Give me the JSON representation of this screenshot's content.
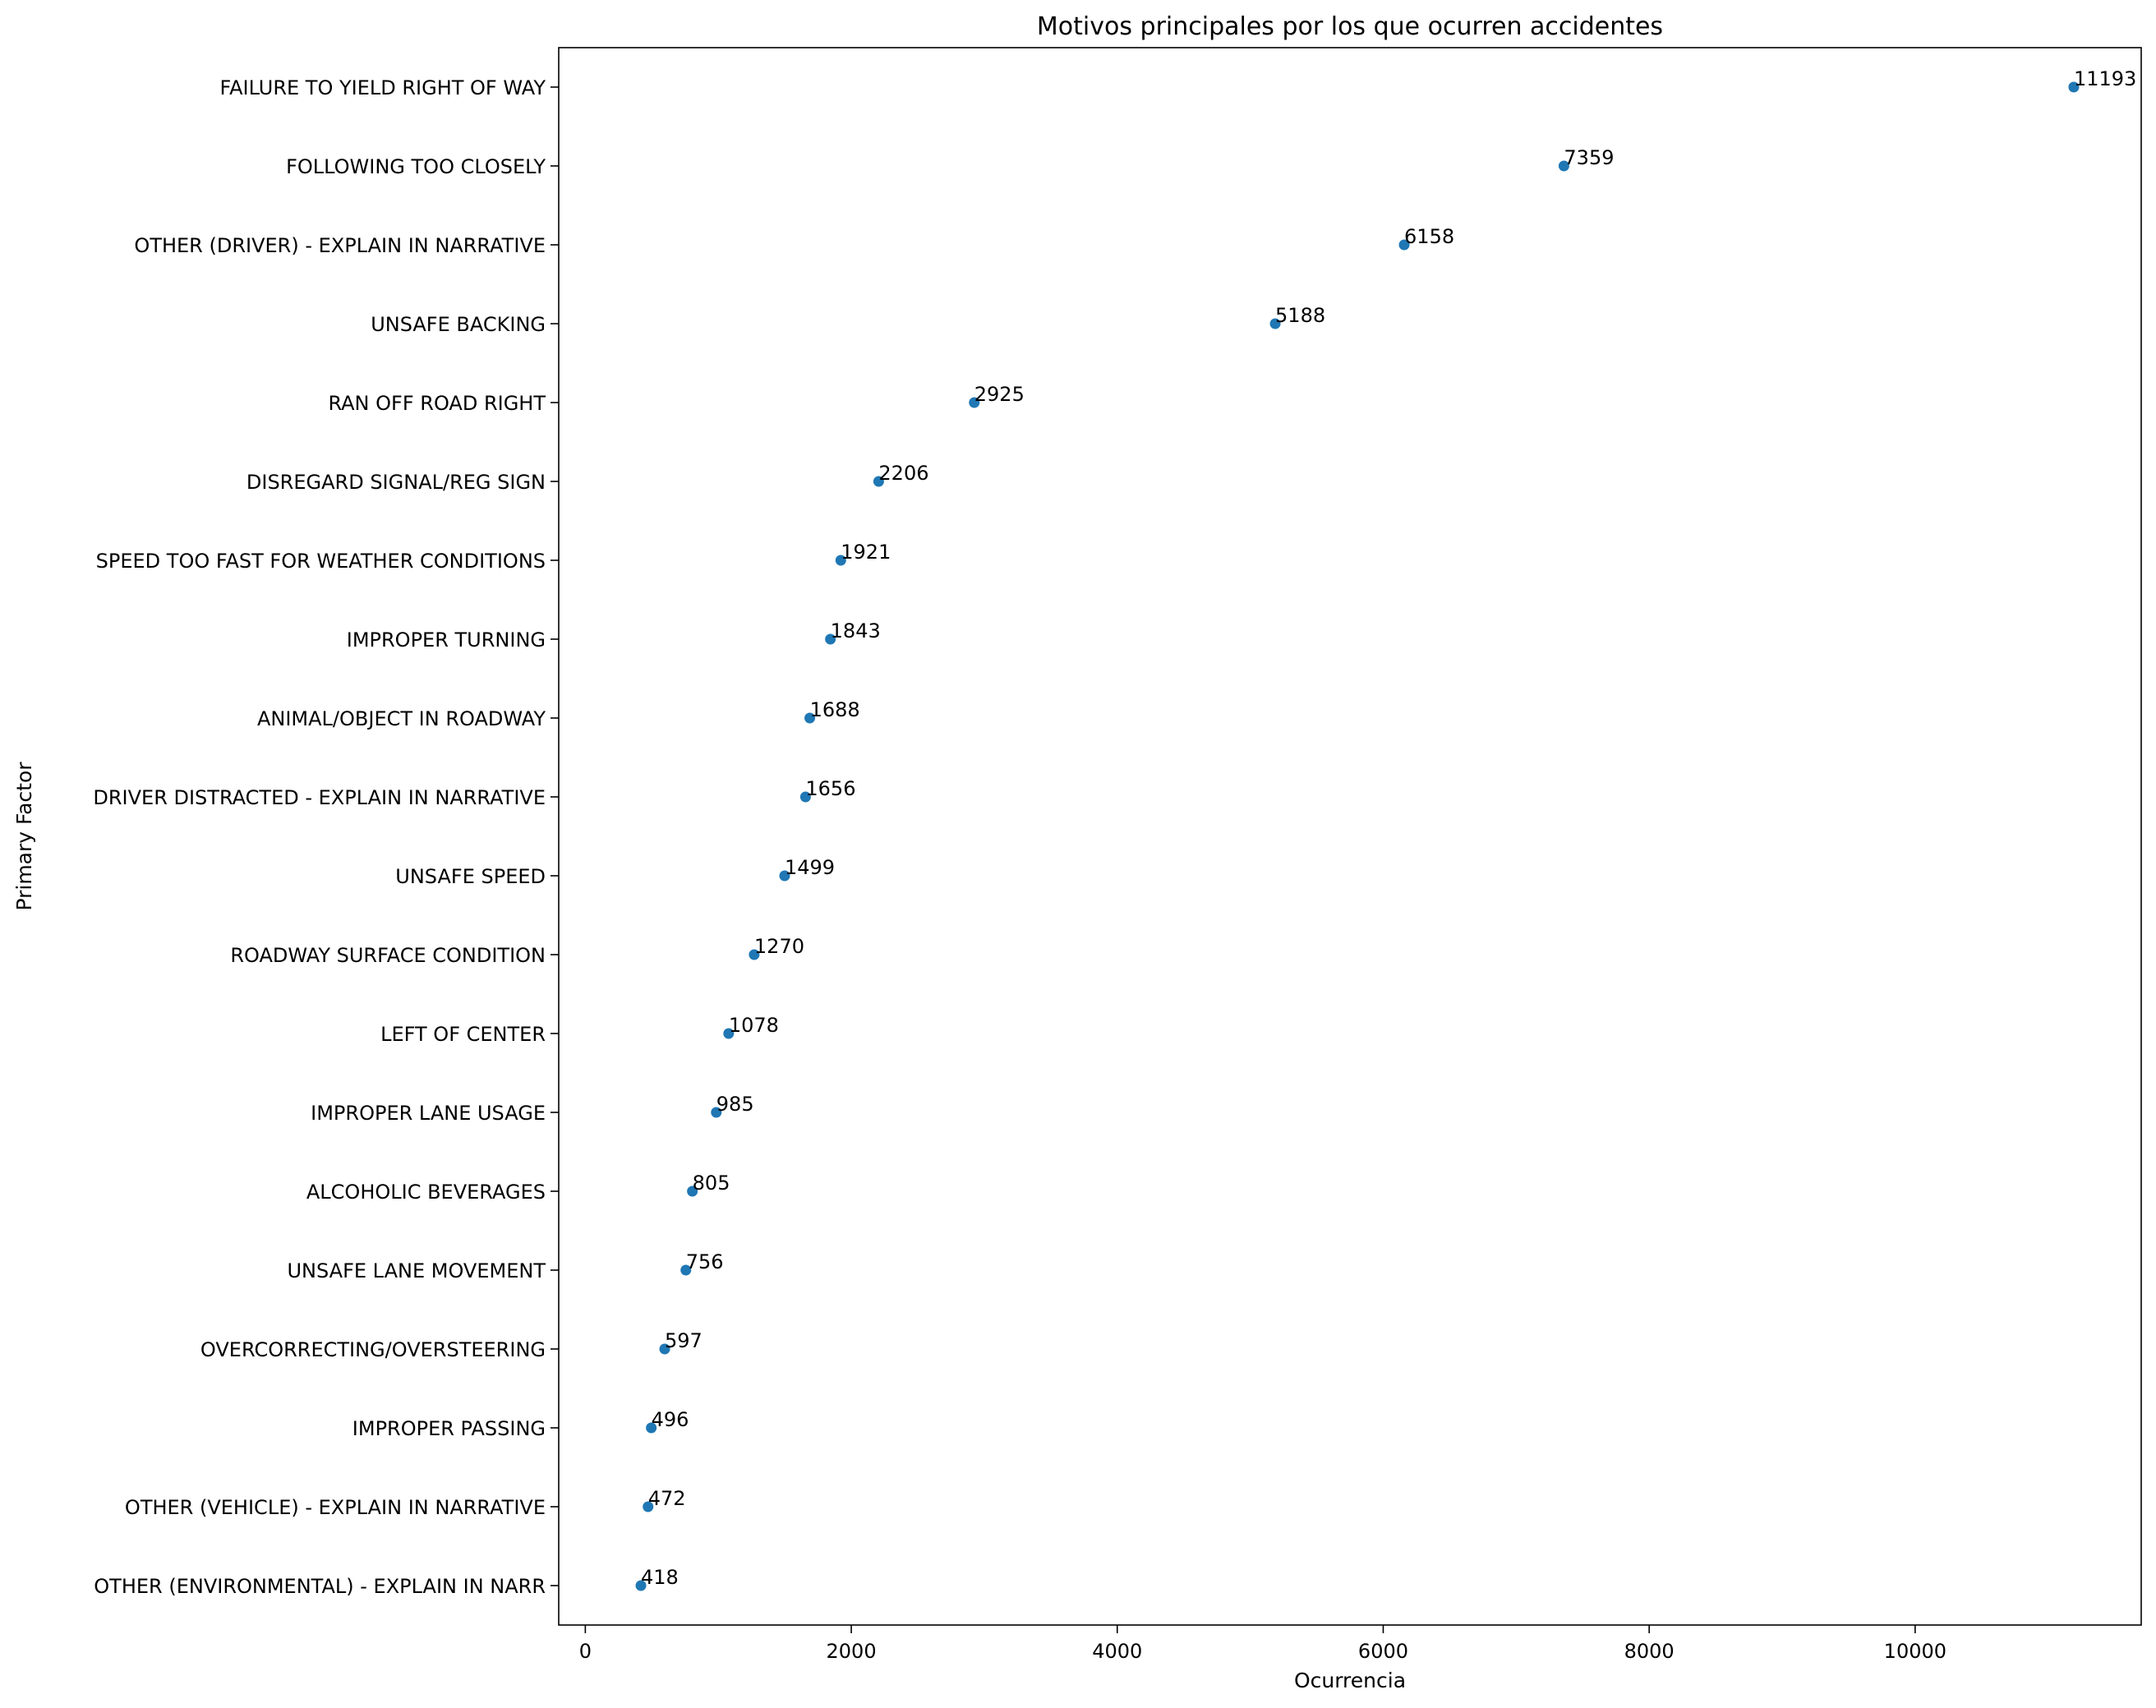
{
  "chart_data": {
    "type": "scatter",
    "title": "Motivos principales por los que ocurren accidentes",
    "xlabel": "Ocurrencia",
    "ylabel": "Primary Factor",
    "xlim": [
      -200,
      11700
    ],
    "xticks": [
      0,
      2000,
      4000,
      6000,
      8000,
      10000
    ],
    "grid": false,
    "point_color": "#1f77b4",
    "categories": [
      "FAILURE TO YIELD RIGHT OF WAY",
      "FOLLOWING TOO CLOSELY",
      "OTHER (DRIVER) - EXPLAIN IN NARRATIVE",
      "UNSAFE BACKING",
      "RAN OFF ROAD RIGHT",
      "DISREGARD SIGNAL/REG SIGN",
      "SPEED TOO FAST FOR WEATHER CONDITIONS",
      "IMPROPER TURNING",
      "ANIMAL/OBJECT IN ROADWAY",
      "DRIVER DISTRACTED - EXPLAIN IN NARRATIVE",
      "UNSAFE SPEED",
      "ROADWAY SURFACE CONDITION",
      "LEFT OF CENTER",
      "IMPROPER LANE USAGE",
      "ALCOHOLIC BEVERAGES",
      "UNSAFE LANE MOVEMENT",
      "OVERCORRECTING/OVERSTEERING",
      "IMPROPER PASSING",
      "OTHER (VEHICLE) - EXPLAIN IN NARRATIVE",
      "OTHER (ENVIRONMENTAL) - EXPLAIN IN NARR"
    ],
    "values": [
      11193,
      7359,
      6158,
      5188,
      2925,
      2206,
      1921,
      1843,
      1688,
      1656,
      1499,
      1270,
      1078,
      985,
      805,
      756,
      597,
      496,
      472,
      418
    ]
  }
}
